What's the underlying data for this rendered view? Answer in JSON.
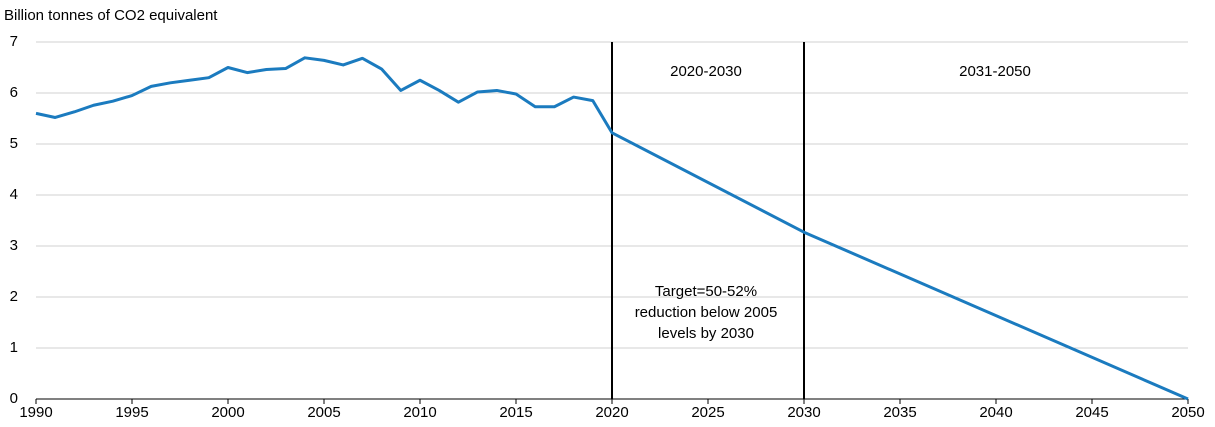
{
  "chart_data": {
    "type": "line",
    "ylabel": "Billion tonnes of CO2 equivalent",
    "x": [
      1990,
      1991,
      1992,
      1993,
      1994,
      1995,
      1996,
      1997,
      1998,
      1999,
      2000,
      2001,
      2002,
      2003,
      2004,
      2005,
      2006,
      2007,
      2008,
      2009,
      2010,
      2011,
      2012,
      2013,
      2014,
      2015,
      2016,
      2017,
      2018,
      2019,
      2020,
      2030,
      2050
    ],
    "series": [
      {
        "color": "#1b7bbf",
        "values": [
          5.6,
          5.52,
          5.63,
          5.76,
          5.84,
          5.95,
          6.13,
          6.2,
          6.25,
          6.3,
          6.5,
          6.4,
          6.46,
          6.48,
          6.69,
          6.64,
          6.55,
          6.68,
          6.47,
          6.05,
          6.25,
          6.05,
          5.82,
          6.02,
          6.05,
          5.98,
          5.73,
          5.73,
          5.92,
          5.85,
          5.22,
          3.27,
          0
        ]
      }
    ],
    "xlim": [
      1990,
      2050
    ],
    "xticks": [
      1990,
      1995,
      2000,
      2005,
      2010,
      2015,
      2020,
      2025,
      2030,
      2035,
      2040,
      2045,
      2050
    ],
    "ylim": [
      0,
      7
    ],
    "yticks": [
      0,
      1,
      2,
      3,
      4,
      5,
      6,
      7
    ],
    "grid": true,
    "vlines": [
      2020,
      2030
    ],
    "annotations": [
      "2020-2030",
      "2031-2050"
    ],
    "target_note": [
      "Target=50-52%",
      "reduction below 2005",
      "levels by 2030"
    ]
  }
}
